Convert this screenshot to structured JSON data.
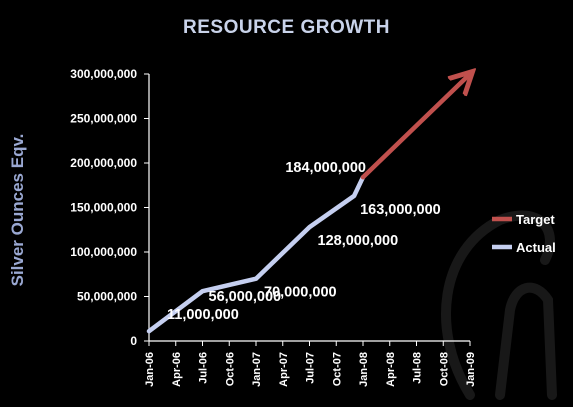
{
  "chart_data": {
    "type": "line",
    "title": "RESOURCE  GROWTH",
    "xlabel": "",
    "ylabel": "Silver Ounces Eqv.",
    "ylim": [
      0,
      300000000
    ],
    "yticks": [
      0,
      50000000,
      100000000,
      150000000,
      200000000,
      250000000,
      300000000
    ],
    "ytick_labels": [
      "0",
      "50,000,000",
      "100,000,000",
      "150,000,000",
      "200,000,000",
      "250,000,000",
      "300,000,000"
    ],
    "categories": [
      "Jan-06",
      "Apr-06",
      "Jul-06",
      "Oct-06",
      "Jan-07",
      "Apr-07",
      "Jul-07",
      "Oct-07",
      "Jan-08",
      "Apr-08",
      "Jul-08",
      "Oct-08",
      "Jan-09"
    ],
    "series": [
      {
        "name": "Actual",
        "color": "#c5cff0",
        "points": [
          {
            "x": "Jan-06",
            "y": 11000000
          },
          {
            "x": "Jul-06",
            "y": 56000000
          },
          {
            "x": "Jan-07",
            "y": 70000000
          },
          {
            "x": "Jul-07",
            "y": 128000000
          },
          {
            "x": "Dec-07",
            "y": 163000000
          },
          {
            "x": "Jan-08",
            "y": 184000000
          }
        ]
      },
      {
        "name": "Target",
        "color": "#c0504d",
        "points": [
          {
            "x": "Jan-08",
            "y": 184000000
          },
          {
            "x": "Jan-09",
            "y": 300000000
          }
        ]
      }
    ],
    "data_labels": [
      "11,000,000",
      "56,000,000",
      "70,000,000",
      "128,000,000",
      "163,000,000",
      "184,000,000"
    ],
    "legend": {
      "placement": "right",
      "entries": [
        "Target",
        "Actual"
      ]
    },
    "grid": false
  }
}
